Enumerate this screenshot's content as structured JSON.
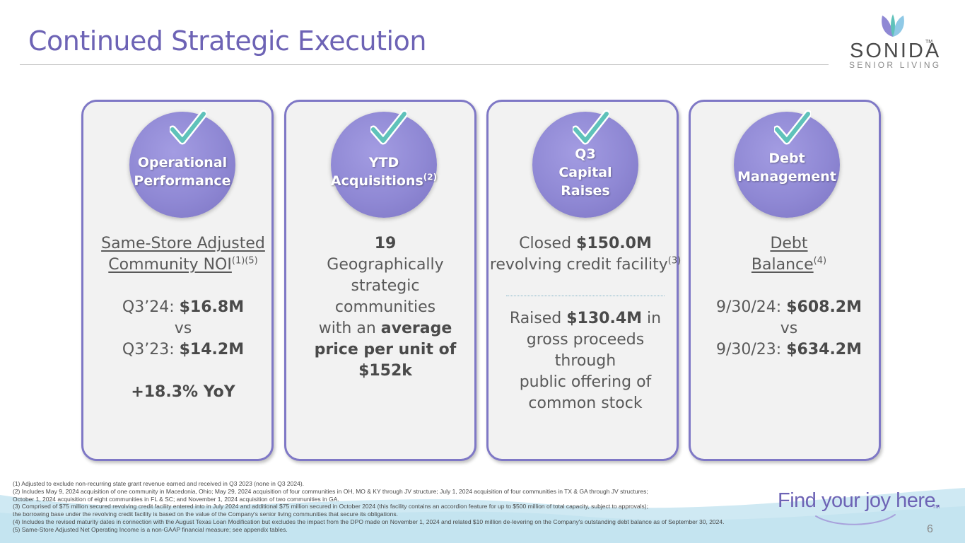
{
  "header": {
    "title": "Continued Strategic Execution"
  },
  "logo": {
    "wordmark": "SONIDA",
    "trademark": "TM",
    "subtitle": "SENIOR LIVING"
  },
  "colors": {
    "accent": "#6d63b5",
    "card_border": "#7f78c6",
    "circle": "#8f88d4",
    "check": "#5fc2ba",
    "wave": "#cfe9f3"
  },
  "cards": [
    {
      "badge_line1": "Operational",
      "badge_line2": "Performance",
      "metric_title_line1": "Same-Store Adjusted",
      "metric_title_line2": "Community NOI",
      "metric_title_sup": "(1)(5)",
      "q3_24_label": "Q3’24:",
      "q3_24_value": "$16.8M",
      "vs": "vs",
      "q3_23_label": "Q3’23:",
      "q3_23_value": "$14.2M",
      "growth": "+18.3% YoY"
    },
    {
      "badge_line1": "YTD",
      "badge_line2": "Acquisitions",
      "badge_sup": "(2)",
      "count": "19",
      "line1": "Geographically",
      "line2": "strategic",
      "line3": "communities",
      "line4_plain": "with an",
      "line4_bold": "average",
      "line5_bold": "price per unit of",
      "line6_bold": "$152k"
    },
    {
      "badge_line1": "Q3",
      "badge_line2": "Capital",
      "badge_line3": "Raises",
      "closed_label": "Closed",
      "closed_value": "$150.0M",
      "facility_text": "revolving credit facility",
      "facility_sup": "(3)",
      "raised_label": "Raised",
      "raised_value": "$130.4M",
      "raised_suffix": "in",
      "line2": "gross proceeds",
      "line3": "through",
      "line4": "public offering of",
      "line5": "common stock"
    },
    {
      "badge_line1": "Debt",
      "badge_line2": "Management",
      "metric_title_line1": "Debt",
      "metric_title_line2": "Balance",
      "metric_title_sup": "(4)",
      "date1_label": "9/30/24:",
      "date1_value": "$608.2M",
      "vs": "vs",
      "date2_label": "9/30/23:",
      "date2_value": "$634.2M"
    }
  ],
  "footnotes": [
    "(1) Adjusted to exclude non-recurring state grant revenue earned and received in Q3 2023 (none in Q3 2024).",
    "(2) Includes May 9, 2024 acquisition of one community in Macedonia, Ohio; May 29, 2024 acquisition of four communities in OH, MO & KY through JV structure; July 1, 2024 acquisition of four communities in TX & GA through JV structures;",
    "October 1, 2024 acquisition of eight communities  in FL & SC; and November 1, 2024 acquisition of two communities in GA.",
    "(3) Comprised of $75 million secured revolving credit facility entered into in July 2024 and additional $75 million secured in October 2024 (this facility contains  an accordion feature for up to $500 million of total capacity, subject to approvals);",
    "the borrowing base under the revolving credit facility is based on the value of the Company's senior living communities that secure its obligations.",
    "(4) Includes the revised maturity dates in connection with the August Texas Loan Modification but excludes the impact from the DPO made on November 1, 2024 and related $10 million de-levering on the Company's outstanding debt balance as of September 30, 2024.",
    "(5) Same-Store Adjusted Net Operating Income is a non-GAAP financial measure; see appendix tables."
  ],
  "footer": {
    "tagline": "Find your joy here.",
    "tagline_tm": "TM",
    "page_number": "6"
  }
}
